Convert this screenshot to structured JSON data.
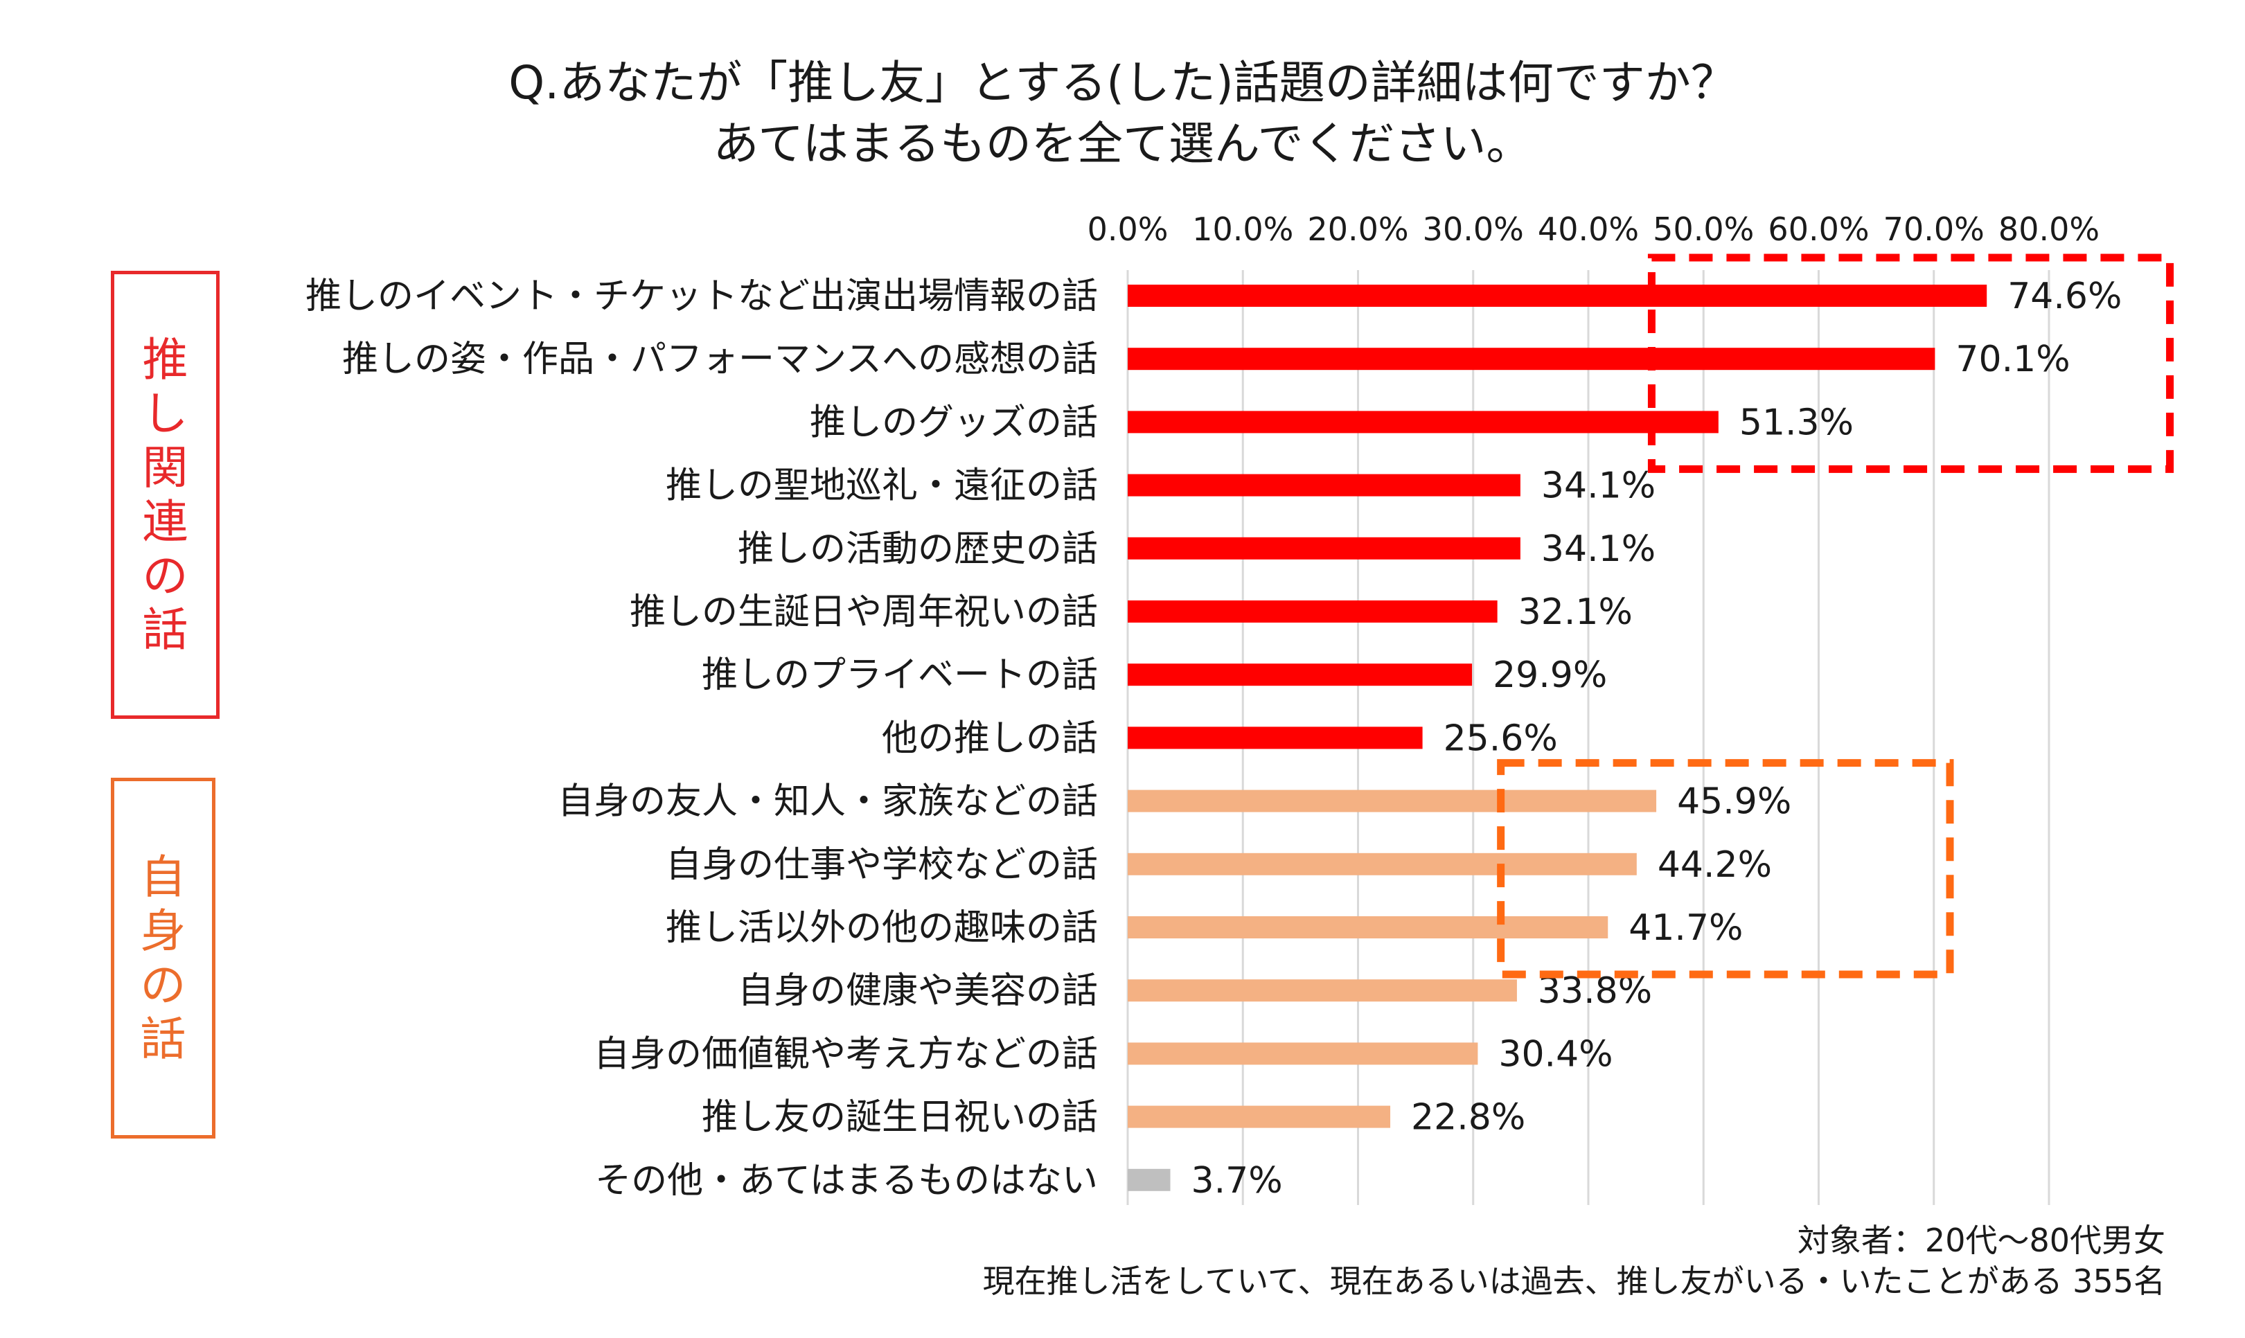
{
  "title_line1": "Q.あなたが「推し友」とする(した)話題の詳細は何ですか？",
  "title_line2": "あてはまるものを全て選んでください。",
  "groups": {
    "oshi": {
      "label": [
        "推",
        "し",
        "関",
        "連",
        "の",
        "話"
      ],
      "color": "#e8292b"
    },
    "self": {
      "label": [
        "自",
        "身",
        "の",
        "話"
      ],
      "color": "#ec6d2c"
    }
  },
  "chart_data": {
    "type": "bar",
    "orientation": "horizontal",
    "xlim": [
      0,
      80
    ],
    "ticks": [
      "0.0%",
      "10.0%",
      "20.0%",
      "30.0%",
      "40.0%",
      "50.0%",
      "60.0%",
      "70.0%",
      "80.0%"
    ],
    "tick_values": [
      0,
      10,
      20,
      30,
      40,
      50,
      60,
      70,
      80
    ],
    "grid": true,
    "colors": {
      "oshi": "#ff0000",
      "self": "#f4b183",
      "other": "#bfbfbf"
    },
    "categories": [
      "推しのイベント・チケットなど出演出場情報の話",
      "推しの姿・作品・パフォーマンスへの感想の話",
      "推しのグッズの話",
      "推しの聖地巡礼・遠征の話",
      "推しの活動の歴史の話",
      "推しの生誕日や周年祝いの話",
      "推しのプライベートの話",
      "他の推しの話",
      "自身の友人・知人・家族などの話",
      "自身の仕事や学校などの話",
      "推し活以外の他の趣味の話",
      "自身の健康や美容の話",
      "自身の価値観や考え方などの話",
      "推し友の誕生日祝いの話",
      "その他・あてはまるものはない"
    ],
    "values": [
      74.6,
      70.1,
      51.3,
      34.1,
      34.1,
      32.1,
      29.9,
      25.6,
      45.9,
      44.2,
      41.7,
      33.8,
      30.4,
      22.8,
      3.7
    ],
    "value_labels": [
      "74.6%",
      "70.1%",
      "51.3%",
      "34.1%",
      "34.1%",
      "32.1%",
      "29.9%",
      "25.6%",
      "45.9%",
      "44.2%",
      "41.7%",
      "33.8%",
      "30.4%",
      "22.8%",
      "3.7%"
    ],
    "group": [
      "oshi",
      "oshi",
      "oshi",
      "oshi",
      "oshi",
      "oshi",
      "oshi",
      "oshi",
      "self",
      "self",
      "self",
      "self",
      "self",
      "self",
      "other"
    ],
    "highlight_boxes": [
      {
        "rows": [
          0,
          2
        ],
        "from": 45.5,
        "to": 90.5,
        "color": "#ff0000",
        "style": "dashed"
      },
      {
        "rows": [
          8,
          10
        ],
        "from": 32.4,
        "to": 71.4,
        "color": "#ff6a13",
        "style": "dashed"
      }
    ]
  },
  "footnote_line1": "対象者：20代～80代男女",
  "footnote_line2": "現在推し活をしていて、現在あるいは過去、推し友がいる・いたことがある 355名"
}
